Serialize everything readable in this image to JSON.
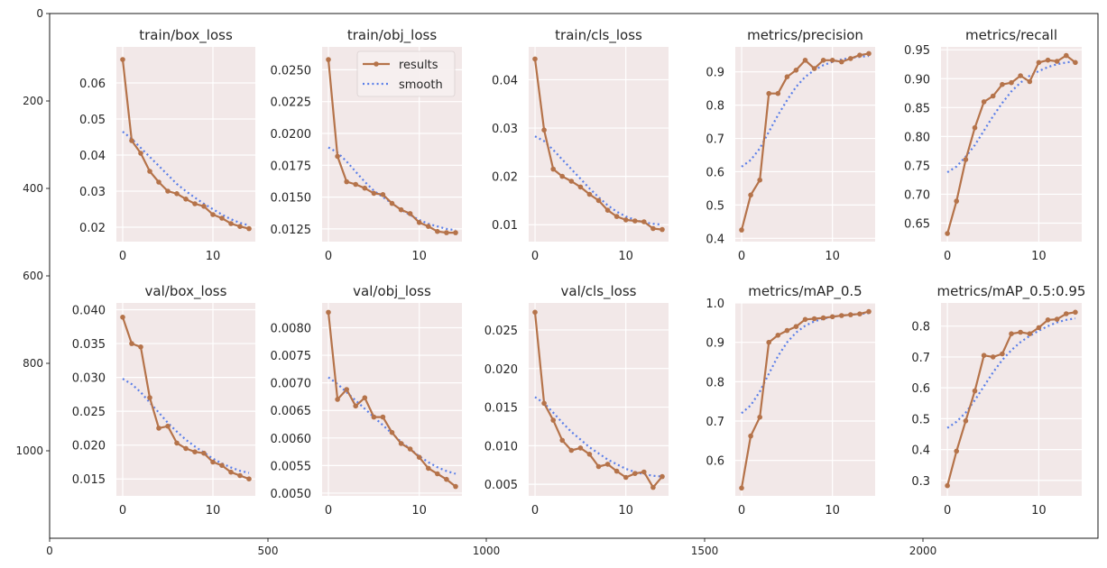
{
  "colors": {
    "results": "#b5734a",
    "smooth": "#5b7fe8",
    "panel_bg": "#f2e8e8",
    "grid": "#ffffff"
  },
  "chart_data": {
    "type": "line",
    "outer_axes": {
      "x_ticks": [
        "0",
        "500",
        "1000",
        "1500",
        "2000"
      ],
      "y_ticks": [
        "0",
        "200",
        "400",
        "600",
        "800",
        "1000"
      ]
    },
    "legend": {
      "entries": [
        "results",
        "smooth"
      ],
      "panel": 1,
      "placement": "top-right"
    },
    "x": [
      0,
      1,
      2,
      3,
      4,
      5,
      6,
      7,
      8,
      9,
      10,
      11,
      12,
      13,
      14
    ],
    "x_ticks": [
      "0",
      "10"
    ],
    "subplots": [
      {
        "title": "train/box_loss",
        "yticks": [
          "0.02",
          "0.03",
          "0.04",
          "0.05",
          "0.06"
        ],
        "ylim": [
          0.016,
          0.07
        ],
        "results": [
          0.0665,
          0.044,
          0.0405,
          0.0355,
          0.0325,
          0.03,
          0.0293,
          0.0278,
          0.0265,
          0.0258,
          0.0235,
          0.0225,
          0.021,
          0.0202,
          0.0196
        ],
        "smooth": [
          0.0465,
          0.0445,
          0.042,
          0.0395,
          0.037,
          0.0345,
          0.032,
          0.03,
          0.0282,
          0.0265,
          0.025,
          0.0235,
          0.0222,
          0.0212,
          0.0205
        ]
      },
      {
        "title": "train/obj_loss",
        "yticks": [
          "0.0125",
          "0.0150",
          "0.0175",
          "0.0200",
          "0.0225",
          "0.0250"
        ],
        "ylim": [
          0.0115,
          0.0268
        ],
        "results": [
          0.0258,
          0.0182,
          0.0162,
          0.016,
          0.0157,
          0.0153,
          0.0152,
          0.0145,
          0.014,
          0.0137,
          0.013,
          0.0127,
          0.0123,
          0.0122,
          0.0122
        ],
        "smooth": [
          0.0189,
          0.0185,
          0.0178,
          0.017,
          0.0162,
          0.0155,
          0.015,
          0.0145,
          0.014,
          0.0136,
          0.0132,
          0.0129,
          0.0127,
          0.0125,
          0.0124
        ]
      },
      {
        "title": "train/cls_loss",
        "yticks": [
          "0.01",
          "0.02",
          "0.03",
          "0.04"
        ],
        "ylim": [
          0.0065,
          0.0468
        ],
        "results": [
          0.0443,
          0.0296,
          0.0215,
          0.02,
          0.019,
          0.0178,
          0.0163,
          0.015,
          0.013,
          0.0117,
          0.011,
          0.0108,
          0.0106,
          0.0092,
          0.009
        ],
        "smooth": [
          0.0283,
          0.0273,
          0.0255,
          0.0235,
          0.0215,
          0.0195,
          0.0175,
          0.0157,
          0.014,
          0.0127,
          0.0117,
          0.011,
          0.0105,
          0.0102,
          0.01
        ]
      },
      {
        "title": "metrics/precision",
        "yticks": [
          "0.4",
          "0.5",
          "0.6",
          "0.7",
          "0.8",
          "0.9"
        ],
        "ylim": [
          0.39,
          0.975
        ],
        "results": [
          0.425,
          0.53,
          0.575,
          0.835,
          0.835,
          0.885,
          0.905,
          0.935,
          0.91,
          0.935,
          0.935,
          0.93,
          0.94,
          0.95,
          0.955
        ],
        "smooth": [
          0.615,
          0.635,
          0.67,
          0.72,
          0.77,
          0.815,
          0.855,
          0.885,
          0.905,
          0.92,
          0.93,
          0.937,
          0.942,
          0.945,
          0.948
        ]
      },
      {
        "title": "metrics/recall",
        "yticks": [
          "0.65",
          "0.70",
          "0.75",
          "0.80",
          "0.85",
          "0.90",
          "0.95"
        ],
        "ylim": [
          0.618,
          0.955
        ],
        "results": [
          0.632,
          0.688,
          0.76,
          0.815,
          0.86,
          0.87,
          0.89,
          0.893,
          0.905,
          0.895,
          0.928,
          0.932,
          0.93,
          0.94,
          0.928
        ],
        "smooth": [
          0.738,
          0.748,
          0.765,
          0.785,
          0.81,
          0.835,
          0.858,
          0.878,
          0.893,
          0.905,
          0.913,
          0.92,
          0.925,
          0.928,
          0.93
        ]
      },
      {
        "title": "val/box_loss",
        "yticks": [
          "0.015",
          "0.020",
          "0.025",
          "0.030",
          "0.035",
          "0.040"
        ],
        "ylim": [
          0.0125,
          0.041
        ],
        "results": [
          0.0389,
          0.035,
          0.0345,
          0.027,
          0.0225,
          0.0228,
          0.0203,
          0.0195,
          0.019,
          0.0188,
          0.0175,
          0.017,
          0.016,
          0.0155,
          0.015
        ],
        "smooth": [
          0.0298,
          0.029,
          0.0278,
          0.0263,
          0.0248,
          0.0233,
          0.022,
          0.0208,
          0.0198,
          0.0189,
          0.018,
          0.0173,
          0.0167,
          0.0162,
          0.0159
        ]
      },
      {
        "title": "val/obj_loss",
        "yticks": [
          "0.0050",
          "0.0055",
          "0.0060",
          "0.0065",
          "0.0070",
          "0.0075",
          "0.0080"
        ],
        "ylim": [
          0.00495,
          0.00845
        ],
        "results": [
          0.00828,
          0.0067,
          0.00688,
          0.00658,
          0.00673,
          0.00638,
          0.00638,
          0.0061,
          0.0059,
          0.0058,
          0.00565,
          0.00545,
          0.00535,
          0.00525,
          0.00512
        ],
        "smooth": [
          0.0071,
          0.00698,
          0.00683,
          0.00668,
          0.00653,
          0.00638,
          0.00623,
          0.00608,
          0.00593,
          0.0058,
          0.00567,
          0.00556,
          0.00547,
          0.0054,
          0.00535
        ]
      },
      {
        "title": "val/cls_loss",
        "yticks": [
          "0.005",
          "0.010",
          "0.015",
          "0.020",
          "0.025"
        ],
        "ylim": [
          0.0035,
          0.0285
        ],
        "results": [
          0.0273,
          0.0155,
          0.0133,
          0.0107,
          0.0094,
          0.0097,
          0.0089,
          0.0073,
          0.0076,
          0.0067,
          0.0059,
          0.0064,
          0.0066,
          0.0046,
          0.006
        ],
        "smooth": [
          0.0163,
          0.0155,
          0.0143,
          0.013,
          0.0118,
          0.0108,
          0.0098,
          0.009,
          0.0082,
          0.0076,
          0.007,
          0.0066,
          0.0063,
          0.0061,
          0.006
        ]
      },
      {
        "title": "metrics/mAP_0.5",
        "yticks": [
          "0.6",
          "0.7",
          "0.8",
          "0.9",
          "1.0"
        ],
        "ylim": [
          0.51,
          1.0
        ],
        "results": [
          0.53,
          0.662,
          0.71,
          0.9,
          0.918,
          0.93,
          0.94,
          0.958,
          0.96,
          0.962,
          0.965,
          0.968,
          0.97,
          0.972,
          0.978
        ],
        "smooth": [
          0.72,
          0.74,
          0.775,
          0.82,
          0.865,
          0.9,
          0.925,
          0.942,
          0.953,
          0.96,
          0.965,
          0.968,
          0.97,
          0.972,
          0.974
        ]
      },
      {
        "title": "metrics/mAP_0.5:0.95",
        "yticks": [
          "0.3",
          "0.4",
          "0.5",
          "0.6",
          "0.7",
          "0.8"
        ],
        "ylim": [
          0.25,
          0.875
        ],
        "results": [
          0.283,
          0.395,
          0.493,
          0.59,
          0.705,
          0.7,
          0.71,
          0.775,
          0.78,
          0.775,
          0.795,
          0.82,
          0.822,
          0.84,
          0.845
        ],
        "smooth": [
          0.47,
          0.49,
          0.52,
          0.56,
          0.605,
          0.65,
          0.69,
          0.722,
          0.748,
          0.768,
          0.785,
          0.8,
          0.812,
          0.82,
          0.825
        ]
      }
    ]
  }
}
